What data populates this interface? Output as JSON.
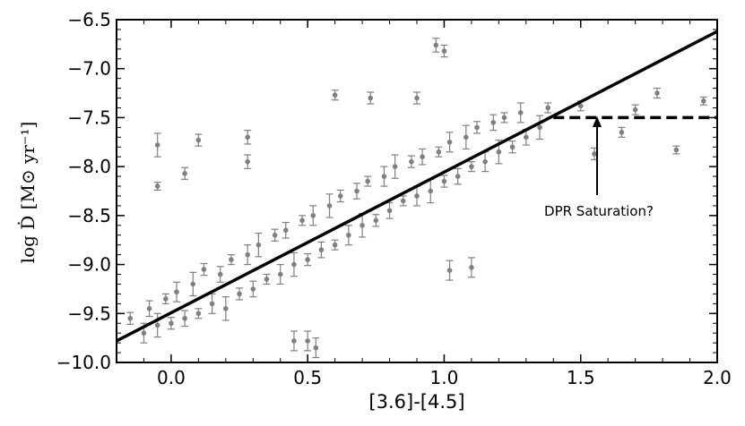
{
  "chart_data": {
    "type": "scatter",
    "x_label": "[3.6]-[4.5]",
    "y_label": "log Ḋ [M⊙ yr⁻¹]",
    "xlim": [
      -0.2,
      2.0
    ],
    "ylim": [
      -10.0,
      -6.5
    ],
    "xticks": [
      {
        "value": 0,
        "label": "0.0"
      },
      0.5,
      {
        "value": 1,
        "label": "1.0"
      },
      1.5,
      {
        "value": 2,
        "label": "2.0"
      }
    ],
    "yticks": [
      {
        "value": -10,
        "label": "−10.0"
      },
      {
        "value": -9.5,
        "label": "−9.5"
      },
      {
        "value": -9,
        "label": "−9.0"
      },
      {
        "value": -8.5,
        "label": "−8.5"
      },
      {
        "value": -8,
        "label": "−8.0"
      },
      {
        "value": -7.5,
        "label": "−7.5"
      },
      {
        "value": -7,
        "label": "−7.0"
      },
      {
        "value": -6.5,
        "label": "−6.5"
      }
    ],
    "series": [
      {
        "color": "#808080",
        "x": [
          -0.15,
          -0.1,
          -0.08,
          -0.05,
          -0.02,
          0.0,
          0.02,
          0.05,
          0.08,
          0.1,
          0.12,
          0.15,
          0.18,
          0.2,
          0.22,
          0.25,
          0.28,
          0.3,
          0.32,
          0.35,
          0.38,
          0.4,
          0.42,
          0.45,
          0.48,
          0.5,
          0.52,
          0.55,
          0.58,
          0.6,
          0.62,
          0.65,
          0.68,
          0.7,
          0.72,
          0.75,
          0.78,
          0.8,
          0.82,
          0.85,
          0.88,
          0.9,
          0.92,
          0.95,
          0.98,
          1.0,
          1.02,
          1.05,
          1.08,
          1.1,
          1.12,
          1.15,
          1.18,
          1.2,
          1.22,
          1.25,
          1.28,
          1.3,
          1.35,
          1.38,
          -0.05,
          -0.05,
          0.1,
          0.05,
          0.28,
          0.28,
          0.97,
          1.0,
          1.02,
          1.1,
          1.78,
          1.85,
          1.95,
          1.7,
          1.65,
          1.5,
          1.55,
          0.6,
          0.73,
          0.9,
          0.45,
          0.5,
          0.53
        ],
        "values": [
          -9.55,
          -9.7,
          -9.45,
          -9.62,
          -9.35,
          -9.6,
          -9.28,
          -9.55,
          -9.2,
          -9.5,
          -9.05,
          -9.4,
          -9.1,
          -9.45,
          -8.95,
          -9.3,
          -8.9,
          -9.25,
          -8.8,
          -9.15,
          -8.7,
          -9.1,
          -8.65,
          -9.0,
          -8.55,
          -8.95,
          -8.5,
          -8.85,
          -8.4,
          -8.8,
          -8.3,
          -8.7,
          -8.25,
          -8.6,
          -8.15,
          -8.55,
          -8.1,
          -8.45,
          -8.0,
          -8.35,
          -7.95,
          -8.3,
          -7.9,
          -8.25,
          -7.85,
          -8.15,
          -7.75,
          -8.1,
          -7.7,
          -8.0,
          -7.6,
          -7.95,
          -7.55,
          -7.85,
          -7.5,
          -7.8,
          -7.45,
          -7.7,
          -7.6,
          -7.4,
          -7.78,
          -8.2,
          -7.73,
          -8.07,
          -7.7,
          -7.95,
          -6.76,
          -6.82,
          -9.06,
          -9.03,
          -7.25,
          -7.83,
          -7.33,
          -7.42,
          -7.65,
          -7.38,
          -7.87,
          -7.27,
          -7.3,
          -7.3,
          -9.78,
          -9.78,
          -9.85
        ],
        "errors": [
          0.06,
          0.1,
          0.08,
          0.12,
          0.05,
          0.06,
          0.1,
          0.08,
          0.12,
          0.05,
          0.06,
          0.1,
          0.08,
          0.12,
          0.05,
          0.06,
          0.1,
          0.08,
          0.12,
          0.05,
          0.06,
          0.1,
          0.08,
          0.12,
          0.05,
          0.06,
          0.1,
          0.08,
          0.12,
          0.05,
          0.06,
          0.1,
          0.08,
          0.12,
          0.05,
          0.06,
          0.1,
          0.08,
          0.12,
          0.05,
          0.06,
          0.1,
          0.08,
          0.12,
          0.05,
          0.06,
          0.1,
          0.08,
          0.12,
          0.05,
          0.06,
          0.1,
          0.08,
          0.12,
          0.05,
          0.06,
          0.1,
          0.08,
          0.12,
          0.05,
          0.12,
          0.04,
          0.06,
          0.06,
          0.07,
          0.07,
          0.07,
          0.06,
          0.1,
          0.1,
          0.05,
          0.04,
          0.04,
          0.05,
          0.05,
          0.05,
          0.06,
          0.05,
          0.06,
          0.06,
          0.1,
          0.1,
          0.1
        ]
      }
    ],
    "lines": [
      {
        "x": [
          -0.2,
          2.0
        ],
        "y": [
          -9.78,
          -6.62
        ],
        "color": "#000000",
        "dashed": false
      },
      {
        "x": [
          1.4,
          2.0
        ],
        "y": [
          -7.5,
          -7.5
        ],
        "color": "#000000",
        "dashed": true
      }
    ],
    "annotation": {
      "text": "DPR Saturation?"
    }
  }
}
